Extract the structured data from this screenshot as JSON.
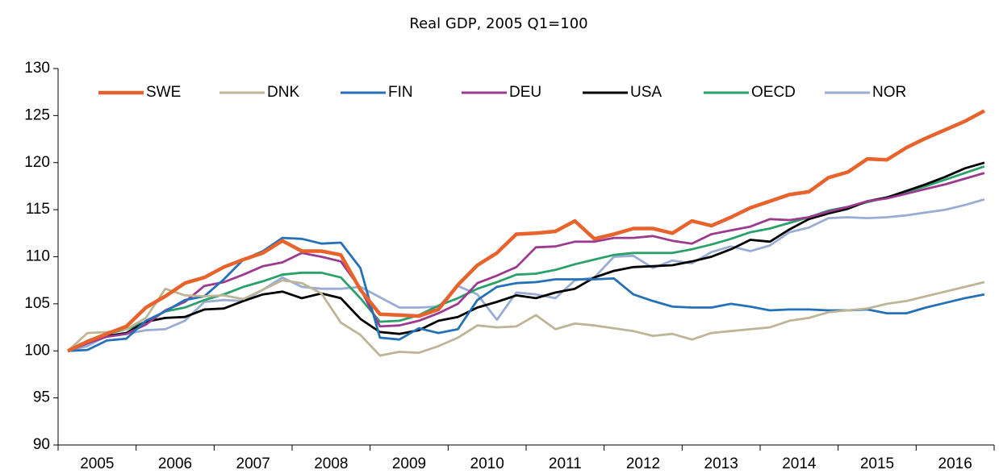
{
  "chart_data": {
    "type": "line",
    "title": "Real GDP, 2005 Q1=100",
    "categories": [
      "2005",
      null,
      null,
      null,
      "2006",
      null,
      null,
      null,
      "2007",
      null,
      null,
      null,
      "2008",
      null,
      null,
      null,
      "2009",
      null,
      null,
      null,
      "2010",
      null,
      null,
      null,
      "2011",
      null,
      null,
      null,
      "2012",
      null,
      null,
      null,
      "2013",
      null,
      null,
      null,
      "2014",
      null,
      null,
      null,
      "2015",
      null,
      null,
      null,
      "2016",
      null,
      null,
      null
    ],
    "ylim": [
      90,
      130
    ],
    "yticks": [
      90,
      95,
      100,
      105,
      110,
      115,
      120,
      125,
      130
    ],
    "grid": false,
    "legend": "top",
    "series": [
      {
        "name": "SWE",
        "color": "#e8622b",
        "values": [
          100,
          101,
          101.8,
          102.6,
          104.6,
          105.8,
          107.2,
          107.8,
          108.9,
          109.7,
          110.4,
          111.7,
          110.6,
          110.6,
          110.2,
          106.5,
          103.9,
          103.8,
          103.7,
          104.4,
          107,
          109.1,
          110.4,
          112.4,
          112.5,
          112.7,
          113.8,
          111.9,
          112.4,
          113,
          113,
          112.5,
          113.8,
          113.3,
          114.2,
          115.2,
          115.9,
          116.6,
          116.9,
          118.4,
          119,
          120.4,
          120.3,
          121.6,
          122.6,
          123.5,
          124.4,
          125.5
        ]
      },
      {
        "name": "DNK",
        "color": "#bdb596",
        "values": [
          100,
          101.9,
          102,
          102.3,
          103.5,
          106.6,
          105.9,
          105.8,
          105.9,
          105.5,
          106.5,
          107.5,
          107.2,
          106.1,
          103,
          101.7,
          99.5,
          99.9,
          99.8,
          100.5,
          101.4,
          102.7,
          102.5,
          102.6,
          103.8,
          102.3,
          102.9,
          102.7,
          102.4,
          102.1,
          101.6,
          101.8,
          101.2,
          101.9,
          102.1,
          102.3,
          102.5,
          103.2,
          103.5,
          104.1,
          104.3,
          104.5,
          105,
          105.3,
          105.8,
          106.3,
          106.8,
          107.3
        ]
      },
      {
        "name": "FIN",
        "color": "#2471b8",
        "values": [
          100,
          100.1,
          101.1,
          101.3,
          103.2,
          104.2,
          105.4,
          105.8,
          107.6,
          109.7,
          110.6,
          112,
          111.9,
          111.4,
          111.5,
          108.8,
          101.4,
          101.2,
          102.4,
          101.9,
          102.3,
          105.4,
          106.8,
          107.2,
          107.3,
          107.6,
          107.6,
          107.6,
          107.7,
          106,
          105.3,
          104.7,
          104.6,
          104.6,
          105,
          104.7,
          104.3,
          104.4,
          104.4,
          104.3,
          104.3,
          104.4,
          104,
          104,
          104.6,
          105.1,
          105.6,
          106
        ]
      },
      {
        "name": "DEU",
        "color": "#9b3a8f",
        "values": [
          100,
          100.8,
          101.5,
          101.8,
          102.8,
          104.3,
          105.2,
          106.9,
          107.3,
          108.1,
          109,
          109.4,
          110.4,
          110,
          109.5,
          106.6,
          102.6,
          102.7,
          103.2,
          104,
          105,
          107.2,
          108,
          108.9,
          111,
          111.1,
          111.6,
          111.6,
          112,
          112,
          112.2,
          111.7,
          111.4,
          112.4,
          112.8,
          113.2,
          114,
          113.9,
          114.2,
          114.8,
          115.3,
          115.9,
          116.2,
          116.7,
          117.2,
          117.7,
          118.3,
          118.9
        ]
      },
      {
        "name": "USA",
        "color": "#000000",
        "values": [
          100,
          100.9,
          101.6,
          101.9,
          103.1,
          103.5,
          103.6,
          104.4,
          104.5,
          105.3,
          106,
          106.3,
          105.6,
          106.1,
          105.6,
          103.4,
          102,
          101.8,
          102.2,
          103.2,
          103.6,
          104.6,
          105.2,
          105.9,
          105.6,
          106.2,
          106.6,
          107.8,
          108.5,
          108.9,
          109,
          109.1,
          109.5,
          110,
          110.8,
          111.8,
          111.6,
          112.9,
          114,
          114.6,
          115.1,
          115.9,
          116.3,
          117,
          117.7,
          118.5,
          119.4,
          120
        ]
      },
      {
        "name": "OECD",
        "color": "#2aa06b",
        "values": [
          100,
          100.8,
          101.8,
          102.3,
          103.1,
          104.2,
          104.6,
          105.4,
          106,
          106.8,
          107.4,
          108.1,
          108.3,
          108.3,
          107.8,
          105.6,
          103.1,
          103.2,
          103.8,
          104.8,
          105.6,
          106.6,
          107.3,
          108.1,
          108.2,
          108.6,
          109.2,
          109.7,
          110.2,
          110.4,
          110.4,
          110.4,
          110.8,
          111.3,
          111.9,
          112.6,
          113,
          113.6,
          114.2,
          114.9,
          115.3,
          115.8,
          116.3,
          116.9,
          117.5,
          118.2,
          118.9,
          119.6
        ]
      },
      {
        "name": "NOR",
        "color": "#99acd4",
        "values": [
          100,
          100.5,
          101.6,
          101.8,
          102.2,
          102.3,
          103.2,
          105.2,
          105.4,
          105.3,
          106.5,
          107.8,
          106.8,
          106.6,
          106.6,
          106.8,
          105.7,
          104.6,
          104.6,
          104.7,
          106.9,
          106,
          103.3,
          106.2,
          106,
          105.6,
          107.5,
          107.8,
          110,
          110.1,
          108.8,
          109.6,
          109.3,
          110.5,
          111.1,
          110.6,
          111.2,
          112.6,
          113.1,
          114.1,
          114.2,
          114.1,
          114.2,
          114.4,
          114.7,
          115,
          115.5,
          116.1
        ]
      }
    ]
  }
}
